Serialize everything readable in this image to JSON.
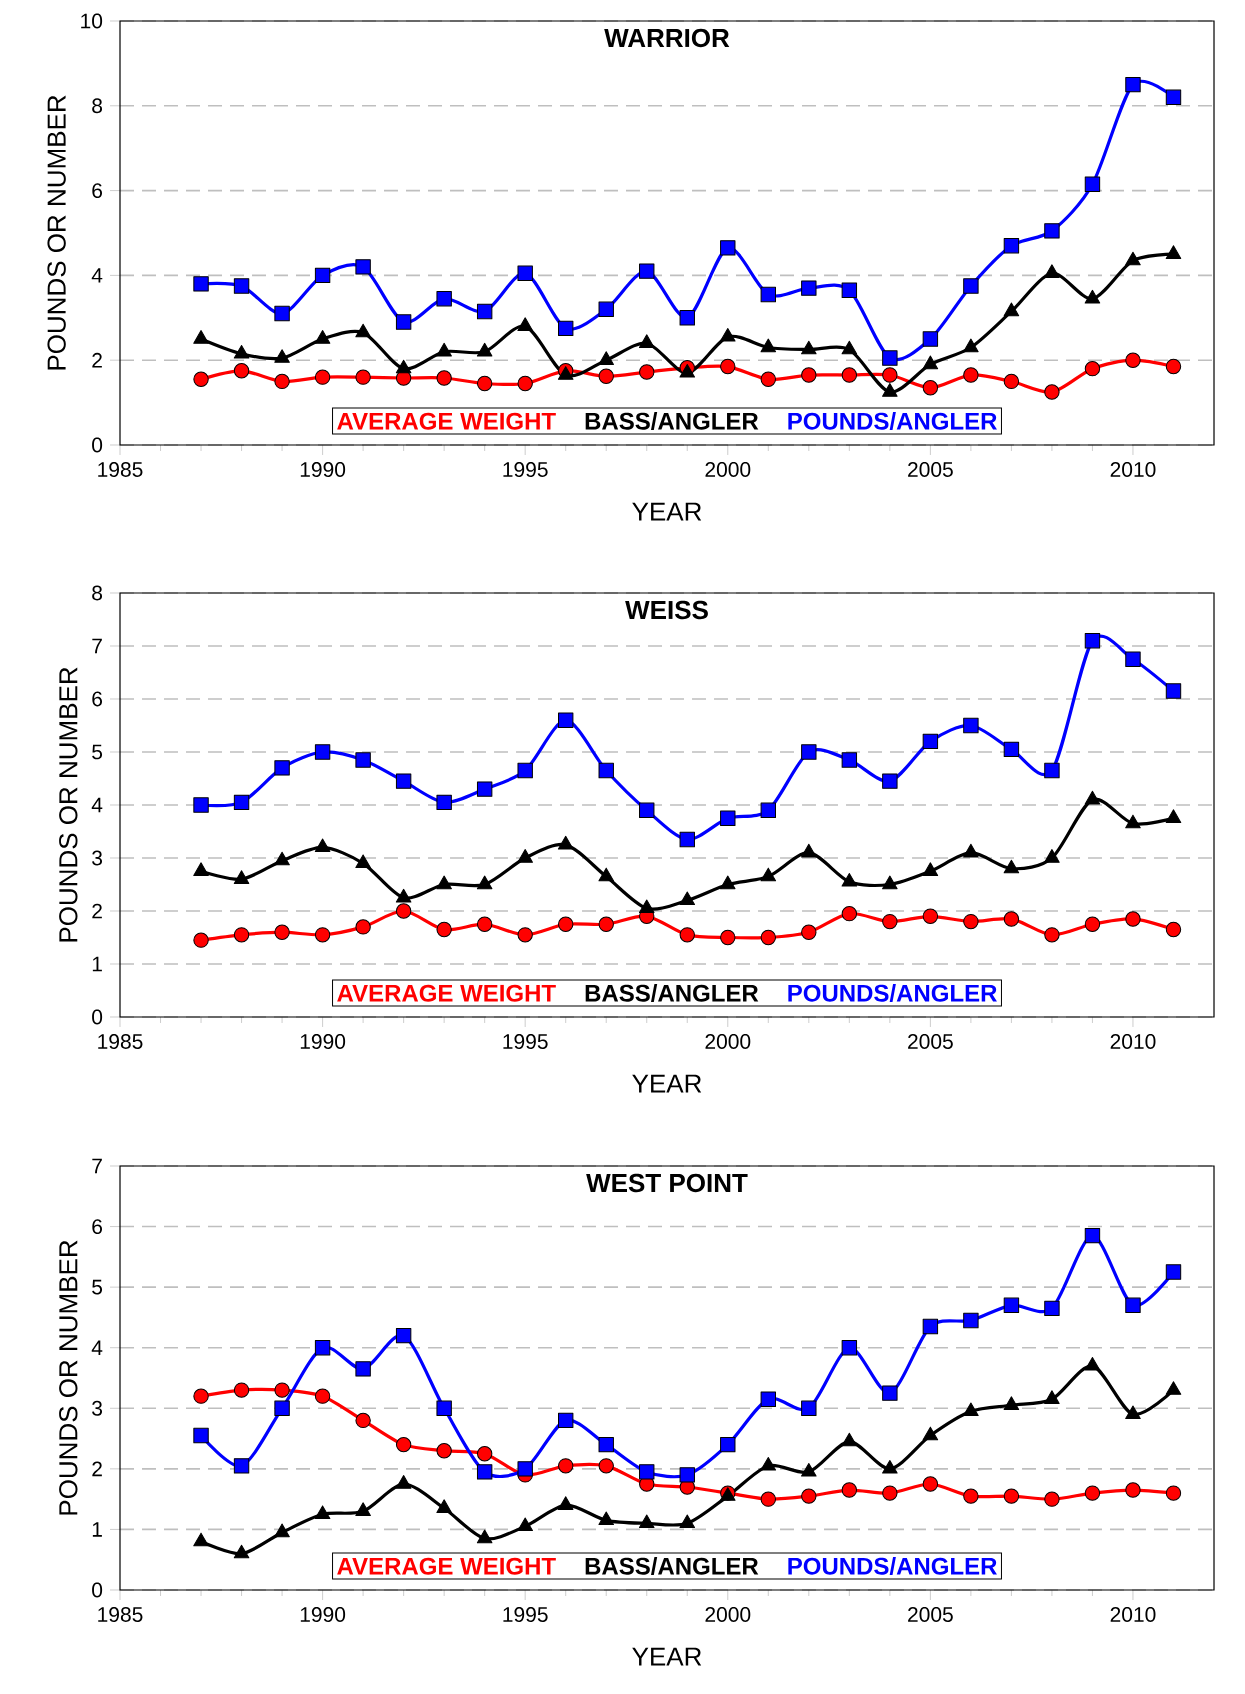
{
  "chart_data": [
    {
      "type": "line",
      "title": "WARRIOR",
      "xlabel": "YEAR",
      "ylabel": "POUNDS OR NUMBER",
      "grid": "y",
      "legend": "bottom",
      "line_style": "solid",
      "x": [
        1987,
        1988,
        1989,
        1990,
        1991,
        1992,
        1993,
        1994,
        1995,
        1996,
        1997,
        1998,
        1999,
        2000,
        2001,
        2002,
        2003,
        2004,
        2005,
        2006,
        2007,
        2008,
        2009,
        2010,
        2011
      ],
      "xlim": [
        1985,
        2012
      ],
      "xticks": [
        1985,
        1990,
        1995,
        2000,
        2005,
        2010
      ],
      "ylim": [
        0,
        10
      ],
      "yticks": [
        0,
        2,
        4,
        6,
        8,
        10
      ],
      "series": [
        {
          "name": "AVERAGE WEIGHT",
          "color": "#ff0000",
          "marker": "circle",
          "values": [
            1.55,
            1.75,
            1.5,
            1.6,
            1.6,
            1.58,
            1.58,
            1.45,
            1.45,
            1.75,
            1.62,
            1.72,
            1.82,
            1.85,
            1.55,
            1.65,
            1.65,
            1.65,
            1.35,
            1.65,
            1.5,
            1.25,
            1.8,
            2.0,
            1.85
          ]
        },
        {
          "name": "BASS/ANGLER",
          "color": "#000000",
          "marker": "triangle",
          "values": [
            2.5,
            2.15,
            2.05,
            2.5,
            2.65,
            1.8,
            2.2,
            2.2,
            2.8,
            1.65,
            2.0,
            2.4,
            1.7,
            2.55,
            2.3,
            2.25,
            2.25,
            1.25,
            1.9,
            2.3,
            3.15,
            4.05,
            3.45,
            4.35,
            4.5
          ]
        },
        {
          "name": "POUNDS/ANGLER",
          "color": "#0000ff",
          "marker": "square",
          "values": [
            3.8,
            3.75,
            3.1,
            4.0,
            4.2,
            2.9,
            3.45,
            3.15,
            4.05,
            2.75,
            3.2,
            4.1,
            3.0,
            4.65,
            3.55,
            3.7,
            3.65,
            2.05,
            2.5,
            3.75,
            4.7,
            5.05,
            6.15,
            8.5,
            8.2
          ]
        }
      ]
    },
    {
      "type": "line",
      "title": "WEISS",
      "xlabel": "YEAR",
      "ylabel": "POUNDS OR NUMBER",
      "grid": "y",
      "legend": "bottom",
      "line_style": "solid",
      "x": [
        1987,
        1988,
        1989,
        1990,
        1991,
        1992,
        1993,
        1994,
        1995,
        1996,
        1997,
        1998,
        1999,
        2000,
        2001,
        2002,
        2003,
        2004,
        2005,
        2006,
        2007,
        2008,
        2009,
        2010,
        2011
      ],
      "xlim": [
        1985,
        2012
      ],
      "xticks": [
        1985,
        1990,
        1995,
        2000,
        2005,
        2010
      ],
      "ylim": [
        0,
        8
      ],
      "yticks": [
        0,
        1,
        2,
        3,
        4,
        5,
        6,
        7,
        8
      ],
      "series": [
        {
          "name": "AVERAGE WEIGHT",
          "color": "#ff0000",
          "marker": "circle",
          "values": [
            1.45,
            1.55,
            1.6,
            1.55,
            1.7,
            2.0,
            1.65,
            1.75,
            1.55,
            1.75,
            1.75,
            1.9,
            1.55,
            1.5,
            1.5,
            1.6,
            1.95,
            1.8,
            1.9,
            1.8,
            1.85,
            1.55,
            1.75,
            1.85,
            1.65
          ]
        },
        {
          "name": "BASS/ANGLER",
          "color": "#000000",
          "marker": "triangle",
          "values": [
            2.75,
            2.6,
            2.95,
            3.2,
            2.9,
            2.25,
            2.5,
            2.5,
            3.0,
            3.25,
            2.65,
            2.05,
            2.2,
            2.5,
            2.65,
            3.1,
            2.55,
            2.5,
            2.75,
            3.1,
            2.8,
            3.0,
            4.1,
            3.65,
            3.75
          ]
        },
        {
          "name": "POUNDS/ANGLER",
          "color": "#0000ff",
          "marker": "square",
          "values": [
            4.0,
            4.05,
            4.7,
            5.0,
            4.85,
            4.45,
            4.05,
            4.3,
            4.65,
            5.6,
            4.65,
            3.9,
            3.35,
            3.75,
            3.9,
            5.0,
            4.85,
            4.45,
            5.2,
            5.5,
            5.05,
            4.65,
            7.1,
            6.75,
            6.15
          ]
        }
      ]
    },
    {
      "type": "line",
      "title": "WEST POINT",
      "xlabel": "YEAR",
      "ylabel": "POUNDS OR NUMBER",
      "grid": "y",
      "legend": "bottom",
      "line_style": "solid",
      "x": [
        1987,
        1988,
        1989,
        1990,
        1991,
        1992,
        1993,
        1994,
        1995,
        1996,
        1997,
        1998,
        1999,
        2000,
        2001,
        2002,
        2003,
        2004,
        2005,
        2006,
        2007,
        2008,
        2009,
        2010,
        2011
      ],
      "xlim": [
        1985,
        2012
      ],
      "xticks": [
        1985,
        1990,
        1995,
        2000,
        2005,
        2010
      ],
      "ylim": [
        0,
        7
      ],
      "yticks": [
        0,
        1,
        2,
        3,
        4,
        5,
        6,
        7
      ],
      "series": [
        {
          "name": "AVERAGE WEIGHT",
          "color": "#ff0000",
          "marker": "circle",
          "values": [
            3.2,
            3.3,
            3.3,
            3.2,
            2.8,
            2.4,
            2.3,
            2.25,
            1.9,
            2.05,
            2.05,
            1.75,
            1.7,
            1.6,
            1.5,
            1.55,
            1.65,
            1.6,
            1.75,
            1.55,
            1.55,
            1.5,
            1.6,
            1.65,
            1.6
          ]
        },
        {
          "name": "BASS/ANGLER",
          "color": "#000000",
          "marker": "triangle",
          "values": [
            0.8,
            0.6,
            0.95,
            1.25,
            1.3,
            1.75,
            1.35,
            0.85,
            1.05,
            1.4,
            1.15,
            1.1,
            1.1,
            1.55,
            2.05,
            1.95,
            2.45,
            2.0,
            2.55,
            2.95,
            3.05,
            3.15,
            3.7,
            2.9,
            3.3
          ]
        },
        {
          "name": "POUNDS/ANGLER",
          "color": "#0000ff",
          "marker": "square",
          "values": [
            2.55,
            2.05,
            3.0,
            4.0,
            3.65,
            4.2,
            3.0,
            1.95,
            2.0,
            2.8,
            2.4,
            1.95,
            1.9,
            2.4,
            3.15,
            3.0,
            4.0,
            3.25,
            4.35,
            4.45,
            4.7,
            4.65,
            5.85,
            4.7,
            5.25
          ]
        }
      ]
    }
  ]
}
